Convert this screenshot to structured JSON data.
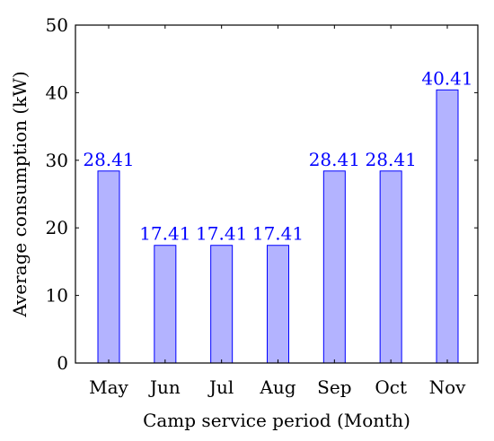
{
  "chart_data": {
    "type": "bar",
    "xlabel": "Camp service period (Month)",
    "ylabel": "Average consumption (kW)",
    "categories": [
      "May",
      "Jun",
      "Jul",
      "Aug",
      "Sep",
      "Oct",
      "Nov"
    ],
    "values": [
      28.41,
      17.41,
      17.41,
      17.41,
      28.41,
      28.41,
      40.41
    ],
    "data_labels": [
      "28.41",
      "17.41",
      "17.41",
      "17.41",
      "28.41",
      "28.41",
      "40.41"
    ],
    "ylim": [
      0,
      50
    ],
    "yticks": [
      0,
      10,
      20,
      30,
      40,
      50
    ],
    "grid": false,
    "legend": "none",
    "colors": {
      "bar_fill": "#b3b3ff",
      "bar_stroke": "#0000ff",
      "label": "#0000ff",
      "axis": "#000000"
    }
  }
}
